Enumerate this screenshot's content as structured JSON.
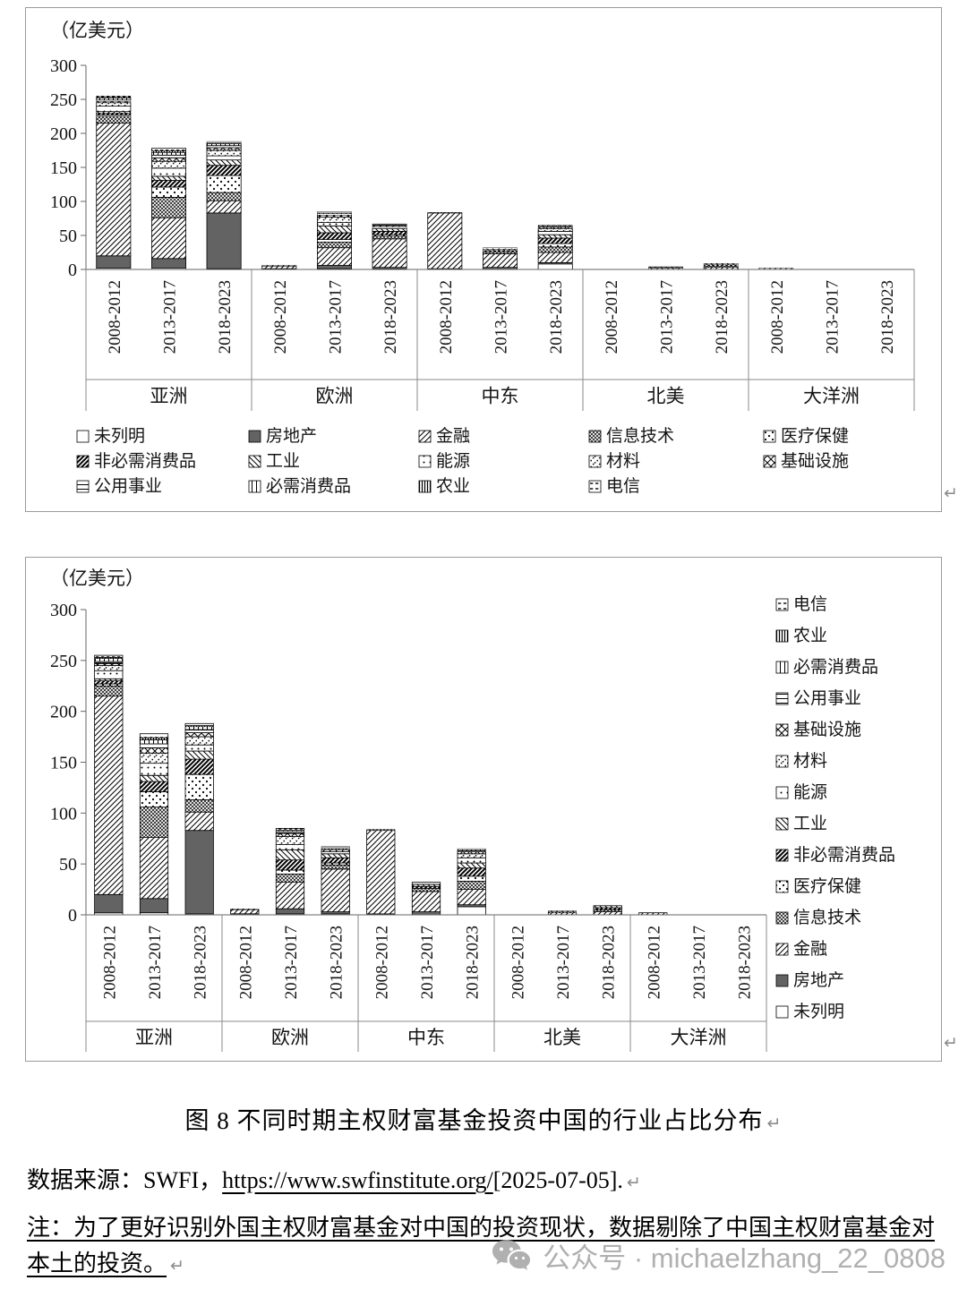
{
  "page": {
    "caption": "图 8 不同时期主权财富基金投资中国的行业占比分布",
    "source_prefix": "数据来源：SWFI，",
    "source_link": "https://www.swfinstitute.org/",
    "source_suffix": "[2025-07-05].",
    "note_line1": "注：为了更好识别外国主权财富基金对中国的投资现状，数据剔除了中国主权财富基金对",
    "note_line2": "本土的投资。",
    "paragraph_mark": "↵",
    "watermark_text": "公众号 · michaelzhang_22_0808"
  },
  "chart_data": {
    "type": "bar",
    "stacked": true,
    "unit_label": "（亿美元）",
    "ylim": [
      0,
      300
    ],
    "yticks": [
      0,
      50,
      100,
      150,
      200,
      250,
      300
    ],
    "groups": [
      "亚洲",
      "欧洲",
      "中东",
      "北美",
      "大洋洲"
    ],
    "periods": [
      "2008-2012",
      "2013-2017",
      "2018-2023"
    ],
    "series": [
      {
        "name": "未列明",
        "pattern": {
          "type": "none"
        },
        "values": [
          2,
          2,
          1,
          0,
          1,
          1,
          0,
          0,
          8,
          0,
          0,
          0,
          0,
          0,
          0
        ]
      },
      {
        "name": "房地产",
        "pattern": {
          "type": "solid",
          "color": "#636363"
        },
        "values": [
          18,
          14,
          82,
          1,
          5,
          2,
          1,
          3,
          2,
          0,
          0,
          0,
          0,
          0,
          0
        ]
      },
      {
        "name": "金融",
        "pattern": {
          "type": "diagUp",
          "size": 6,
          "stroke": 1
        },
        "values": [
          195,
          60,
          18,
          4,
          26,
          42,
          82,
          20,
          15,
          0,
          2,
          3,
          2,
          0,
          0
        ]
      },
      {
        "name": "信息技术",
        "pattern": {
          "type": "cross",
          "size": 4,
          "stroke": 0.7
        },
        "values": [
          10,
          30,
          12,
          0,
          8,
          4,
          1,
          3,
          8,
          0,
          1,
          2,
          0,
          0,
          0
        ]
      },
      {
        "name": "医疗保健",
        "pattern": {
          "type": "diamondDots",
          "size": 8,
          "r": 1.1
        },
        "values": [
          2,
          15,
          25,
          0,
          4,
          2,
          0,
          0,
          5,
          0,
          0,
          0,
          0,
          0,
          0
        ]
      },
      {
        "name": "非必需消费品",
        "pattern": {
          "type": "diagUp",
          "size": 5,
          "stroke": 2
        },
        "values": [
          3,
          10,
          15,
          0,
          10,
          5,
          0,
          2,
          8,
          0,
          0,
          2,
          0,
          0,
          0
        ]
      },
      {
        "name": "工业",
        "pattern": {
          "type": "diagDown",
          "size": 6,
          "stroke": 1
        },
        "values": [
          2,
          6,
          8,
          1,
          10,
          4,
          0,
          2,
          5,
          0,
          1,
          2,
          0,
          0,
          0
        ]
      },
      {
        "name": "能源",
        "pattern": {
          "type": "dots",
          "size": 7,
          "r": 1
        },
        "values": [
          8,
          12,
          6,
          0,
          5,
          2,
          0,
          2,
          5,
          0,
          0,
          0,
          0,
          0,
          0
        ]
      },
      {
        "name": "材料",
        "pattern": {
          "type": "speckle",
          "size": 7
        },
        "values": [
          5,
          10,
          8,
          0,
          8,
          2,
          0,
          0,
          4,
          0,
          0,
          0,
          0,
          0,
          0
        ]
      },
      {
        "name": "基础设施",
        "pattern": {
          "type": "cross",
          "size": 8,
          "stroke": 1
        },
        "values": [
          2,
          5,
          4,
          0,
          3,
          1,
          0,
          0,
          2,
          0,
          0,
          0,
          0,
          0,
          0
        ]
      },
      {
        "name": "公用事业",
        "pattern": {
          "type": "horiz",
          "size": 5,
          "stroke": 1
        },
        "values": [
          2,
          4,
          3,
          0,
          2,
          1,
          0,
          0,
          1,
          0,
          0,
          0,
          0,
          0,
          0
        ]
      },
      {
        "name": "必需消费品",
        "pattern": {
          "type": "vert",
          "size": 5,
          "stroke": 1
        },
        "values": [
          3,
          4,
          3,
          0,
          1,
          0,
          0,
          0,
          1,
          0,
          0,
          0,
          0,
          0,
          0
        ]
      },
      {
        "name": "农业",
        "pattern": {
          "type": "vert",
          "size": 3,
          "stroke": 1.2
        },
        "values": [
          1,
          2,
          1,
          0,
          0,
          0,
          0,
          0,
          0,
          0,
          0,
          0,
          0,
          0,
          0
        ]
      },
      {
        "name": "电信",
        "pattern": {
          "type": "dash",
          "size": 6,
          "stroke": 1.4
        },
        "values": [
          2,
          4,
          2,
          0,
          2,
          1,
          0,
          0,
          1,
          0,
          0,
          0,
          0,
          0,
          0
        ]
      }
    ],
    "charts": [
      {
        "position": "top",
        "legend": "bottom"
      },
      {
        "position": "bottom",
        "legend": "right"
      }
    ]
  }
}
